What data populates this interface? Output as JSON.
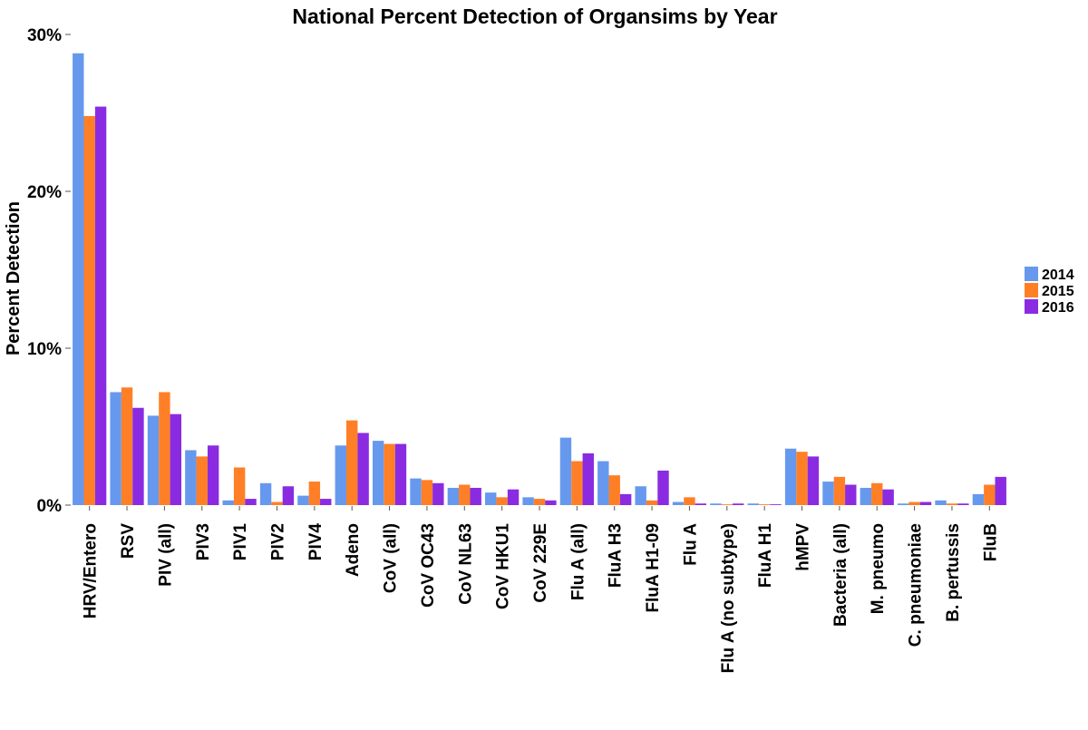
{
  "chart_data": {
    "type": "bar",
    "title": "National Percent Detection of Organsims by Year",
    "xlabel": "",
    "ylabel": "Percent Detection",
    "ylim": [
      0,
      30
    ],
    "y_ticks": [
      0,
      10,
      20,
      30
    ],
    "y_tick_labels": [
      "0%",
      "10%",
      "20%",
      "30%"
    ],
    "grid": false,
    "legend_position": "right",
    "categories": [
      "HRV/Entero",
      "RSV",
      "PIV (all)",
      "PIV3",
      "PIV1",
      "PIV2",
      "PIV4",
      "Adeno",
      "CoV (all)",
      "CoV OC43",
      "CoV NL63",
      "CoV HKU1",
      "CoV 229E",
      "Flu A (all)",
      "FluA H3",
      "FluA H1-09",
      "Flu A",
      "Flu A (no subtype)",
      "FluA H1",
      "hMPV",
      "Bacteria (all)",
      "M. pneumo",
      "C. pneumoniae",
      "B. pertussis",
      "FluB"
    ],
    "series": [
      {
        "name": "2014",
        "color": "#6699ee",
        "values": [
          28.8,
          7.2,
          5.7,
          3.5,
          0.3,
          1.4,
          0.6,
          3.8,
          4.1,
          1.7,
          1.1,
          0.8,
          0.5,
          4.3,
          2.8,
          1.2,
          0.2,
          0.1,
          0.1,
          3.6,
          1.5,
          1.1,
          0.1,
          0.3,
          0.7
        ]
      },
      {
        "name": "2015",
        "color": "#ff7f27",
        "values": [
          24.8,
          7.5,
          7.2,
          3.1,
          2.4,
          0.2,
          1.5,
          5.4,
          3.9,
          1.6,
          1.3,
          0.5,
          0.4,
          2.8,
          1.9,
          0.3,
          0.5,
          0.05,
          0.05,
          3.4,
          1.8,
          1.4,
          0.2,
          0.1,
          1.3
        ]
      },
      {
        "name": "2016",
        "color": "#8a2be2",
        "values": [
          25.4,
          6.2,
          5.8,
          3.8,
          0.4,
          1.2,
          0.4,
          4.6,
          3.9,
          1.4,
          1.1,
          1.0,
          0.3,
          3.3,
          0.7,
          2.2,
          0.1,
          0.1,
          0.05,
          3.1,
          1.3,
          1.0,
          0.2,
          0.1,
          1.8
        ]
      }
    ]
  }
}
